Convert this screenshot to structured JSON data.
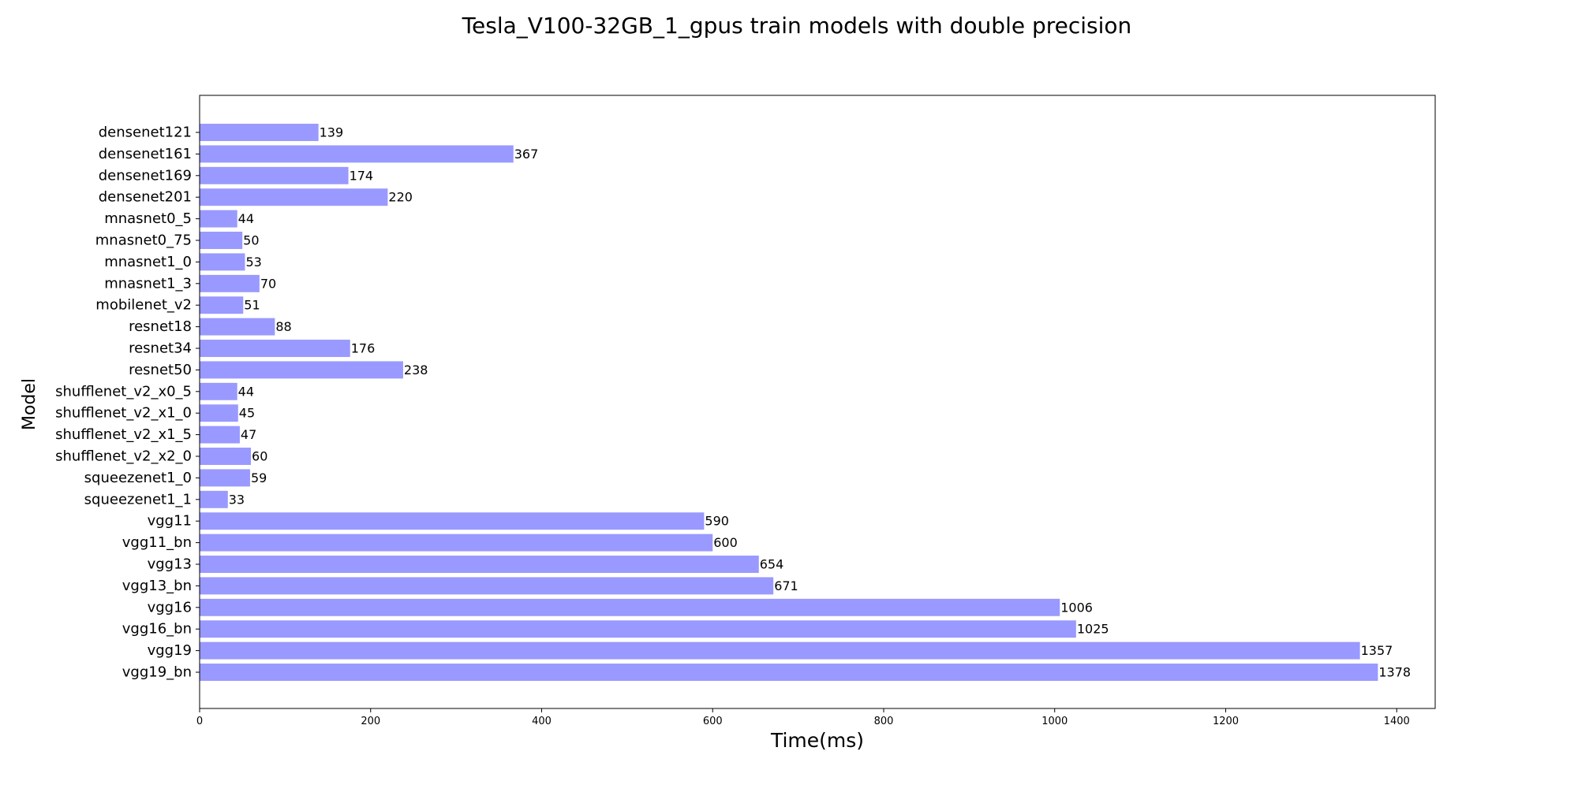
{
  "chart_data": {
    "type": "bar",
    "orientation": "horizontal",
    "title": "Tesla_V100-32GB_1_gpus train models with double precision",
    "xlabel": "Time(ms)",
    "ylabel": "Model",
    "xlim": [
      0,
      1445
    ],
    "xticks": [
      0,
      200,
      400,
      600,
      800,
      1000,
      1200,
      1400
    ],
    "grid": false,
    "bar_color": "#9999ff",
    "categories": [
      "densenet121",
      "densenet161",
      "densenet169",
      "densenet201",
      "mnasnet0_5",
      "mnasnet0_75",
      "mnasnet1_0",
      "mnasnet1_3",
      "mobilenet_v2",
      "resnet18",
      "resnet34",
      "resnet50",
      "shufflenet_v2_x0_5",
      "shufflenet_v2_x1_0",
      "shufflenet_v2_x1_5",
      "shufflenet_v2_x2_0",
      "squeezenet1_0",
      "squeezenet1_1",
      "vgg11",
      "vgg11_bn",
      "vgg13",
      "vgg13_bn",
      "vgg16",
      "vgg16_bn",
      "vgg19",
      "vgg19_bn"
    ],
    "values": [
      139,
      367,
      174,
      220,
      44,
      50,
      53,
      70,
      51,
      88,
      176,
      238,
      44,
      45,
      47,
      60,
      59,
      33,
      590,
      600,
      654,
      671,
      1006,
      1025,
      1357,
      1378
    ]
  }
}
